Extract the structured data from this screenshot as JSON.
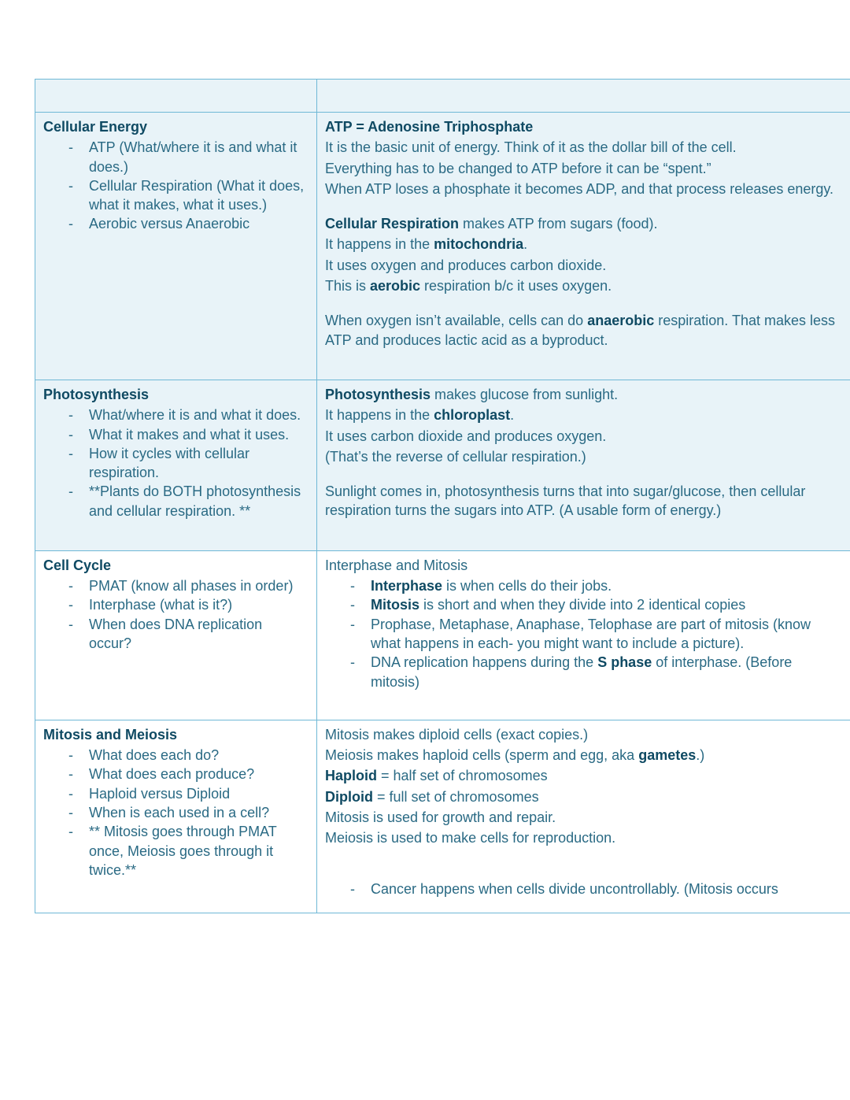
{
  "colors": {
    "row_bg_light": "#e8f3f8",
    "row_bg_white": "#ffffff",
    "border": "#6fb8d6",
    "text": "#2a6a84",
    "title": "#0f4a63"
  },
  "layout": {
    "col_left_width": 358,
    "col_right_width": 678,
    "font_size": 18,
    "font_family": "Trebuchet MS"
  },
  "rows": [
    {
      "bg": "light",
      "left": {
        "title": "",
        "bullets": []
      },
      "right": {
        "blocks": []
      },
      "is_header": true
    },
    {
      "bg": "light",
      "left": {
        "title": "Cellular Energy",
        "bullets": [
          "ATP (What/where it is and what it does.)",
          "Cellular Respiration (What it does, what it makes, what it uses.)",
          "Aerobic versus Anaerobic"
        ]
      },
      "right": {
        "blocks": [
          {
            "type": "p",
            "html": "<b>ATP = Adenosine Triphosphate</b>"
          },
          {
            "type": "p",
            "html": "It is the basic unit of energy.  Think of it as the dollar bill of the cell."
          },
          {
            "type": "p",
            "html": "Everything has to be changed to ATP before it can be “spent.”"
          },
          {
            "type": "p",
            "html": "When ATP loses a phosphate it becomes ADP, and that process releases energy."
          },
          {
            "type": "gap"
          },
          {
            "type": "p",
            "html": "<b>Cellular Respiration</b> makes ATP from sugars (food)."
          },
          {
            "type": "p",
            "html": "It happens in the <b>mitochondria</b>."
          },
          {
            "type": "p",
            "html": "It uses oxygen and produces carbon dioxide."
          },
          {
            "type": "p",
            "html": "This is <b>aerobic</b> respiration b/c it uses oxygen."
          },
          {
            "type": "gap"
          },
          {
            "type": "p",
            "html": "When oxygen isn’t available, cells can do <b>anaerobic</b> respiration.  That makes less ATP and produces lactic acid as a byproduct."
          },
          {
            "type": "gap"
          }
        ]
      }
    },
    {
      "bg": "light",
      "left": {
        "title": "Photosynthesis",
        "bullets": [
          "What/where it is and what it does.",
          "What it makes and what it uses.",
          "How it cycles with cellular respiration.",
          "**Plants do BOTH photosynthesis and cellular respiration. **"
        ]
      },
      "right": {
        "blocks": [
          {
            "type": "p",
            "html": "<b>Photosynthesis</b> makes glucose from sunlight."
          },
          {
            "type": "p",
            "html": "It happens in the <b>chloroplast</b>."
          },
          {
            "type": "p",
            "html": "It uses carbon dioxide and produces oxygen."
          },
          {
            "type": "p",
            "html": "(That’s the reverse of cellular respiration.)"
          },
          {
            "type": "gap"
          },
          {
            "type": "p",
            "html": "Sunlight comes in, photosynthesis turns that into sugar/glucose, then cellular respiration turns the sugars into ATP. (A usable form of energy.)"
          },
          {
            "type": "gap"
          }
        ]
      }
    },
    {
      "bg": "white",
      "left": {
        "title": "Cell Cycle",
        "bullets": [
          "PMAT (know all phases in order)",
          "Interphase (what is it?)",
          "When does DNA replication occur?"
        ]
      },
      "right": {
        "blocks": [
          {
            "type": "p",
            "html": "Interphase and Mitosis"
          },
          {
            "type": "ul",
            "items": [
              "<b>Interphase</b> is when cells do their jobs.",
              "<b>Mitosis</b> is short and when they divide into 2 identical copies",
              "Prophase, Metaphase, Anaphase, Telophase are part of mitosis (know what happens in each- you might want to include a picture).",
              "DNA replication happens during the <b>S phase</b> of interphase. (Before mitosis)"
            ]
          },
          {
            "type": "gap"
          }
        ]
      }
    },
    {
      "bg": "white",
      "left": {
        "title": "Mitosis and Meiosis",
        "bullets": [
          "What does each do?",
          "What does each produce?",
          "Haploid versus Diploid",
          "When is each used in a cell?",
          "** Mitosis goes through PMAT once, Meiosis goes through it twice.**"
        ]
      },
      "right": {
        "blocks": [
          {
            "type": "p",
            "html": "Mitosis makes diploid cells (exact copies.)"
          },
          {
            "type": "p",
            "html": "Meiosis makes haploid cells (sperm and egg, aka <b>gametes</b>.)"
          },
          {
            "type": "p",
            "html": "<b>Haploid</b> = half set of chromosomes"
          },
          {
            "type": "p",
            "html": "<b>Diploid</b> = full set of chromosomes"
          },
          {
            "type": "p",
            "html": "Mitosis is used for growth and repair."
          },
          {
            "type": "p",
            "html": "Meiosis is used to make cells for reproduction."
          },
          {
            "type": "gap"
          },
          {
            "type": "gap"
          },
          {
            "type": "ul",
            "items": [
              "Cancer happens when cells divide uncontrollably.  (Mitosis occurs"
            ]
          }
        ]
      }
    }
  ]
}
